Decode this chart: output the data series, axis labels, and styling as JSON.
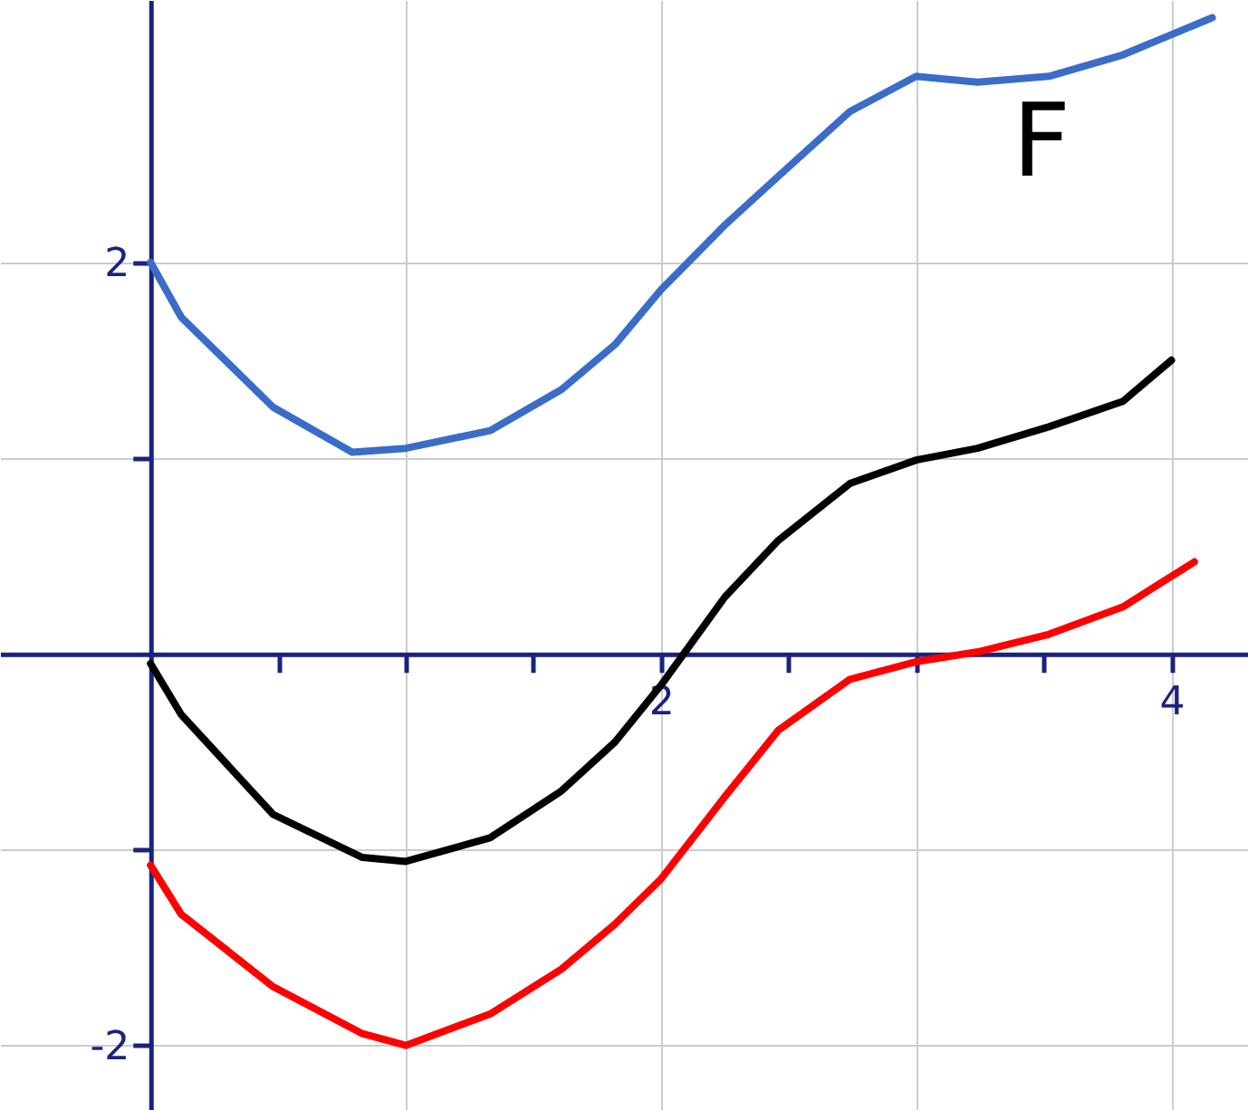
{
  "chart_data": {
    "type": "line",
    "xlim": [
      -0.59,
      4.3
    ],
    "ylim": [
      -2.33,
      3.34
    ],
    "xticks": [
      {
        "value": 0.5,
        "label": null
      },
      {
        "value": 1,
        "label": null
      },
      {
        "value": 1.5,
        "label": null
      },
      2,
      {
        "value": 2.5,
        "label": null
      },
      {
        "value": 3,
        "label": null
      },
      {
        "value": 3.5,
        "label": null
      },
      4
    ],
    "yticks": [
      -2,
      {
        "value": -1,
        "label": null
      },
      {
        "value": 1,
        "label": null
      },
      2
    ],
    "grid": true,
    "line_style": "solid",
    "marker": "none",
    "annotations": [
      "F"
    ],
    "series": [
      {
        "color": "#3a6cc8",
        "x": [
          0,
          0.12,
          0.48,
          0.79,
          1.0,
          1.33,
          1.61,
          1.82,
          2.0,
          2.25,
          2.46,
          2.74,
          3.0,
          3.24,
          3.52,
          3.81,
          4.16
        ],
        "values": [
          2.0,
          1.72,
          1.26,
          1.03,
          1.05,
          1.14,
          1.35,
          1.58,
          1.86,
          2.19,
          2.44,
          2.77,
          2.95,
          2.92,
          2.95,
          3.06,
          3.25
        ]
      },
      {
        "color": "#000000",
        "x": [
          0,
          0.12,
          0.48,
          0.83,
          1.0,
          1.33,
          1.61,
          1.82,
          2.0,
          2.25,
          2.46,
          2.74,
          3.0,
          3.24,
          3.52,
          3.81,
          4.0
        ],
        "values": [
          -0.05,
          -0.31,
          -0.82,
          -1.04,
          -1.06,
          -0.94,
          -0.7,
          -0.45,
          -0.16,
          0.29,
          0.58,
          0.87,
          0.99,
          1.05,
          1.16,
          1.29,
          1.5
        ]
      },
      {
        "color": "#ff0000",
        "x": [
          0,
          0.12,
          0.48,
          0.83,
          1.0,
          1.33,
          1.61,
          1.82,
          2.0,
          2.25,
          2.46,
          2.74,
          3.0,
          3.24,
          3.52,
          3.81,
          4.09
        ],
        "values": [
          -1.08,
          -1.33,
          -1.7,
          -1.94,
          -2.0,
          -1.84,
          -1.61,
          -1.38,
          -1.15,
          -0.73,
          -0.39,
          -0.13,
          -0.04,
          0.01,
          0.1,
          0.24,
          0.47
        ]
      }
    ]
  }
}
